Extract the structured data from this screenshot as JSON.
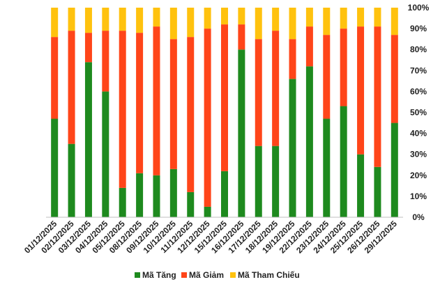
{
  "chart_data": {
    "type": "bar",
    "stacked": true,
    "percent_axis": true,
    "categories": [
      "01/12/2025",
      "02/12/2025",
      "03/12/2025",
      "04/12/2025",
      "05/12/2025",
      "08/12/2025",
      "09/12/2025",
      "10/12/2025",
      "11/12/2025",
      "12/12/2025",
      "15/12/2025",
      "16/12/2025",
      "17/12/2025",
      "18/12/2025",
      "19/12/2025",
      "22/12/2025",
      "23/12/2025",
      "24/12/2025",
      "25/12/2025",
      "26/12/2025",
      "29/12/2025"
    ],
    "series": [
      {
        "name": "Mã Tăng",
        "color": "#1e8a1e",
        "values": [
          47,
          35,
          74,
          60,
          14,
          21,
          20,
          23,
          12,
          5,
          22,
          80,
          34,
          34,
          66,
          72,
          47,
          53,
          30,
          24,
          45
        ]
      },
      {
        "name": "Mã Giảm",
        "color": "#ff4519",
        "values": [
          39,
          54,
          14,
          29,
          75,
          67,
          71,
          62,
          74,
          85,
          70,
          12,
          51,
          55,
          19,
          19,
          40,
          37,
          61,
          67,
          42
        ]
      },
      {
        "name": "Mã Tham Chiếu",
        "color": "#ffc20e",
        "values": [
          14,
          11,
          12,
          11,
          11,
          12,
          9,
          15,
          14,
          10,
          8,
          8,
          15,
          11,
          15,
          9,
          13,
          10,
          9,
          9,
          13
        ]
      }
    ],
    "y_ticks": [
      "0%",
      "10%",
      "20%",
      "30%",
      "40%",
      "50%",
      "60%",
      "70%",
      "80%",
      "90%",
      "100%"
    ],
    "ylim": [
      0,
      100
    ],
    "y_axis_side": "right",
    "grid": false,
    "legend_position": "bottom"
  }
}
